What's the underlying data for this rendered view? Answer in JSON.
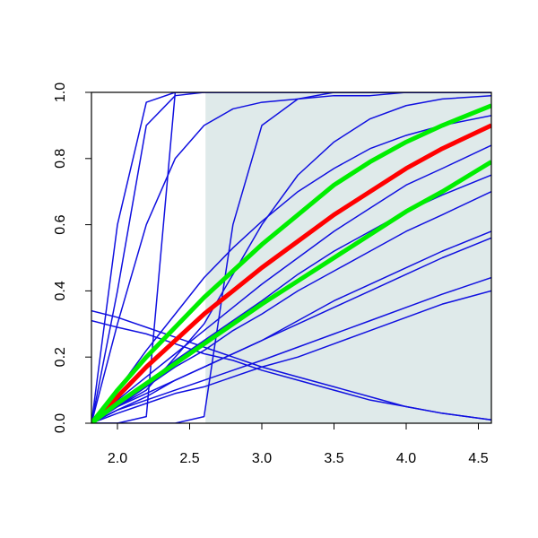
{
  "chart_data": {
    "type": "line",
    "x": [
      1.82,
      2.0,
      2.2,
      2.4,
      2.6,
      2.8,
      3.0,
      3.25,
      3.5,
      3.75,
      4.0,
      4.25,
      4.59
    ],
    "xlim": [
      1.82,
      4.59
    ],
    "ylim": [
      0,
      1
    ],
    "xticks": [
      {
        "value": 2,
        "label": "2.0"
      },
      {
        "value": 2.5,
        "label": "2.5"
      },
      {
        "value": 3,
        "label": "3.0"
      },
      {
        "value": 3.5,
        "label": "3.5"
      },
      {
        "value": 4,
        "label": "4.0"
      },
      {
        "value": 4.5,
        "label": "4.5"
      }
    ],
    "yticks": [
      {
        "value": 0,
        "label": "0.0"
      },
      {
        "value": 0.2,
        "label": "0.2"
      },
      {
        "value": 0.4,
        "label": "0.4"
      },
      {
        "value": 0.6,
        "label": "0.6"
      },
      {
        "value": 0.8,
        "label": "0.8"
      },
      {
        "value": 1,
        "label": "1.0"
      }
    ],
    "band": {
      "x": [
        2.61,
        4.59
      ],
      "color": "#dfeaea"
    },
    "grid": false,
    "series": [
      {
        "color": "#1010e0",
        "width": 1.5,
        "values": [
          0,
          0.6,
          0.97,
          1,
          1,
          1,
          1,
          1,
          1,
          1,
          1,
          1,
          1
        ]
      },
      {
        "color": "#1010e0",
        "width": 1.5,
        "values": [
          0,
          0.4,
          0.9,
          0.99,
          1,
          1,
          1,
          1,
          1,
          1,
          1,
          1,
          1
        ]
      },
      {
        "color": "#1010e0",
        "width": 1.5,
        "values": [
          0,
          0,
          0.02,
          1,
          1,
          1,
          1,
          1,
          1,
          1,
          1,
          1,
          1
        ]
      },
      {
        "color": "#1010e0",
        "width": 1.5,
        "values": [
          0,
          0,
          0,
          0,
          0.02,
          0.6,
          0.9,
          0.98,
          1,
          1,
          1,
          1,
          1
        ]
      },
      {
        "color": "#1010e0",
        "width": 1.5,
        "values": [
          0,
          0.05,
          0.1,
          0.2,
          0.3,
          0.45,
          0.6,
          0.75,
          0.85,
          0.92,
          0.96,
          0.98,
          0.99
        ]
      },
      {
        "color": "#1010e0",
        "width": 1.5,
        "values": [
          0,
          0.3,
          0.6,
          0.8,
          0.9,
          0.95,
          0.97,
          0.98,
          0.99,
          0.99,
          1,
          1,
          1
        ]
      },
      {
        "color": "#1010e0",
        "width": 1.5,
        "values": [
          0,
          0.05,
          0.09,
          0.13,
          0.17,
          0.21,
          0.25,
          0.3,
          0.35,
          0.4,
          0.45,
          0.5,
          0.56
        ]
      },
      {
        "color": "#1010e0",
        "width": 1.5,
        "values": [
          0,
          0.04,
          0.07,
          0.1,
          0.13,
          0.16,
          0.19,
          0.23,
          0.27,
          0.31,
          0.35,
          0.39,
          0.44
        ]
      },
      {
        "color": "#1010e0",
        "width": 1.5,
        "values": [
          0,
          0.03,
          0.06,
          0.09,
          0.11,
          0.14,
          0.17,
          0.2,
          0.24,
          0.28,
          0.32,
          0.36,
          0.4
        ]
      },
      {
        "color": "#1010e0",
        "width": 1.5,
        "values": [
          0,
          0.06,
          0.12,
          0.19,
          0.25,
          0.31,
          0.37,
          0.45,
          0.52,
          0.58,
          0.64,
          0.69,
          0.75
        ]
      },
      {
        "color": "#1010e0",
        "width": 1.5,
        "values": [
          0,
          0.07,
          0.14,
          0.21,
          0.28,
          0.35,
          0.42,
          0.5,
          0.58,
          0.65,
          0.72,
          0.77,
          0.84
        ]
      },
      {
        "color": "#1010e0",
        "width": 1.5,
        "values": [
          0.34,
          0.32,
          0.29,
          0.26,
          0.23,
          0.2,
          0.17,
          0.14,
          0.11,
          0.08,
          0.05,
          0.03,
          0.01
        ]
      },
      {
        "color": "#1010e0",
        "width": 1.5,
        "values": [
          0.31,
          0.29,
          0.27,
          0.24,
          0.21,
          0.19,
          0.16,
          0.13,
          0.1,
          0.07,
          0.05,
          0.03,
          0.01
        ]
      },
      {
        "color": "#1010e0",
        "width": 1.5,
        "values": [
          0,
          0.05,
          0.11,
          0.17,
          0.22,
          0.28,
          0.33,
          0.4,
          0.46,
          0.52,
          0.58,
          0.63,
          0.7
        ]
      },
      {
        "color": "#1010e0",
        "width": 1.5,
        "values": [
          0,
          0.04,
          0.08,
          0.13,
          0.17,
          0.21,
          0.25,
          0.31,
          0.37,
          0.42,
          0.47,
          0.52,
          0.58
        ]
      },
      {
        "color": "#1010e0",
        "width": 1.5,
        "values": [
          0,
          0.1,
          0.22,
          0.33,
          0.44,
          0.53,
          0.61,
          0.7,
          0.77,
          0.83,
          0.87,
          0.9,
          0.93
        ]
      },
      {
        "color": "#ff0000",
        "width": 5,
        "values": [
          0,
          0.08,
          0.17,
          0.25,
          0.33,
          0.4,
          0.47,
          0.55,
          0.63,
          0.7,
          0.77,
          0.83,
          0.9
        ]
      },
      {
        "color": "#00ee00",
        "width": 5,
        "values": [
          0,
          0.1,
          0.2,
          0.29,
          0.38,
          0.46,
          0.54,
          0.63,
          0.72,
          0.79,
          0.85,
          0.9,
          0.96
        ]
      },
      {
        "color": "#00ee00",
        "width": 5,
        "values": [
          0,
          0.06,
          0.12,
          0.18,
          0.24,
          0.3,
          0.36,
          0.43,
          0.5,
          0.57,
          0.64,
          0.7,
          0.79
        ]
      }
    ]
  }
}
